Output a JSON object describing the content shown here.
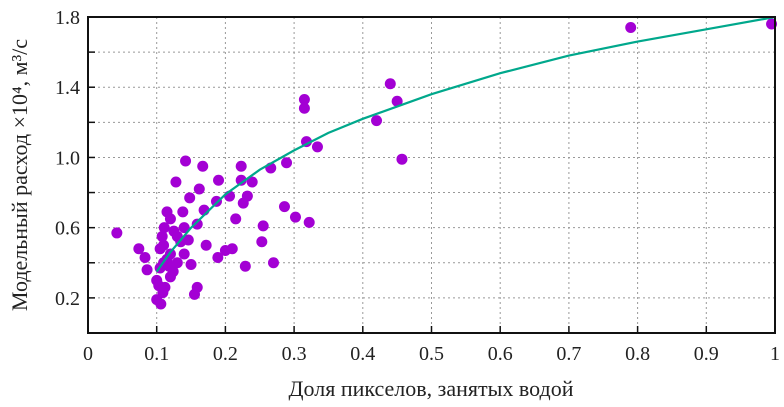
{
  "chart_data": {
    "type": "scatter",
    "title": "",
    "xlabel": "Доля пикселов, занятых водой",
    "ylabel": "Модельный расход ×10⁴,  м³/с",
    "xlim": [
      0,
      1
    ],
    "ylim": [
      0,
      1.8
    ],
    "xticks": [
      "0",
      "0.1",
      "0.2",
      "0.3",
      "0.4",
      "0.5",
      "0.6",
      "0.7",
      "0.8",
      "0.9",
      "1"
    ],
    "yticks": [
      "0.2",
      "0.6",
      "1.0",
      "1.4",
      "1.8"
    ],
    "grid": true,
    "colors": {
      "points": "#a300d4",
      "fit": "#00a88c"
    },
    "series": [
      {
        "name": "data",
        "kind": "points",
        "x": [
          0.042,
          0.074,
          0.083,
          0.086,
          0.106,
          0.155,
          0.159,
          0.142,
          0.167,
          0.128,
          0.162,
          0.148,
          0.19,
          0.187,
          0.169,
          0.223,
          0.223,
          0.239,
          0.266,
          0.289,
          0.318,
          0.334,
          0.206,
          0.226,
          0.232,
          0.215,
          0.255,
          0.253,
          0.286,
          0.302,
          0.322,
          0.27,
          0.229,
          0.21,
          0.2,
          0.189,
          0.172,
          0.15,
          0.159,
          0.146,
          0.138,
          0.115,
          0.111,
          0.105,
          0.124,
          0.112,
          0.109,
          0.1,
          0.11,
          0.12,
          0.13,
          0.12,
          0.1,
          0.14,
          0.13,
          0.12,
          0.11,
          0.14,
          0.135,
          0.105,
          0.115,
          0.125,
          0.103,
          0.118,
          0.108,
          0.315,
          0.315,
          0.44,
          0.45,
          0.42,
          0.457,
          0.79,
          0.995
        ],
        "y": [
          0.57,
          0.48,
          0.43,
          0.36,
          0.165,
          0.22,
          0.26,
          0.98,
          0.95,
          0.86,
          0.82,
          0.77,
          0.87,
          0.75,
          0.7,
          0.95,
          0.87,
          0.86,
          0.94,
          0.97,
          1.09,
          1.06,
          0.78,
          0.74,
          0.78,
          0.65,
          0.61,
          0.52,
          0.72,
          0.66,
          0.63,
          0.4,
          0.38,
          0.48,
          0.47,
          0.43,
          0.5,
          0.39,
          0.62,
          0.53,
          0.69,
          0.69,
          0.6,
          0.48,
          0.35,
          0.26,
          0.23,
          0.3,
          0.4,
          0.45,
          0.55,
          0.65,
          0.19,
          0.6,
          0.4,
          0.32,
          0.5,
          0.45,
          0.52,
          0.37,
          0.42,
          0.58,
          0.27,
          0.38,
          0.55,
          1.33,
          1.28,
          1.42,
          1.32,
          1.21,
          0.99,
          1.74,
          1.76
        ]
      },
      {
        "name": "fit",
        "kind": "line",
        "x": [
          0.1,
          0.12,
          0.15,
          0.2,
          0.25,
          0.3,
          0.35,
          0.4,
          0.5,
          0.6,
          0.7,
          0.8,
          0.9,
          1.0
        ],
        "y": [
          0.35,
          0.46,
          0.6,
          0.79,
          0.93,
          1.04,
          1.14,
          1.22,
          1.36,
          1.48,
          1.58,
          1.66,
          1.73,
          1.8
        ]
      }
    ]
  }
}
